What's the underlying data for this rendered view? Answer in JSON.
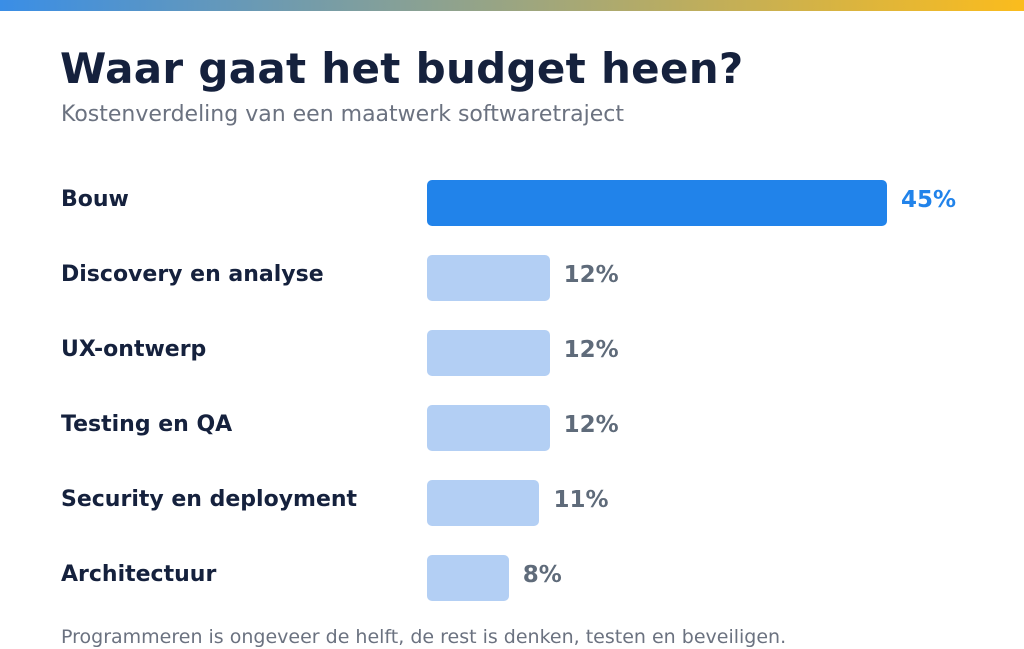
{
  "colors": {
    "highlight": "#2183ea",
    "muted_bar": "#b3cff4",
    "highlight_value": "#2183ea",
    "muted_value": "#5f6b7a",
    "gradient_start": "#3a8ee6",
    "gradient_end": "#fbbc1d"
  },
  "title": "Waar gaat het budget heen?",
  "subtitle": "Kostenverdeling van een maatwerk softwaretraject",
  "footnote": "Programmeren is ongeveer de helft, de rest is denken, testen en beveiligen.",
  "chart_data": {
    "type": "bar",
    "orientation": "horizontal",
    "title": "Waar gaat het budget heen?",
    "subtitle": "Kostenverdeling van een maatwerk softwaretraject",
    "categories": [
      "Bouw",
      "Discovery en analyse",
      "UX-ontwerp",
      "Testing en QA",
      "Security en deployment",
      "Architectuur"
    ],
    "values": [
      45,
      12,
      12,
      12,
      11,
      8
    ],
    "value_labels": [
      "45%",
      "12%",
      "12%",
      "12%",
      "11%",
      "8%"
    ],
    "highlighted": "Bouw",
    "unit": "%",
    "xlim": [
      0,
      45
    ],
    "grid": false,
    "legend": "none"
  }
}
